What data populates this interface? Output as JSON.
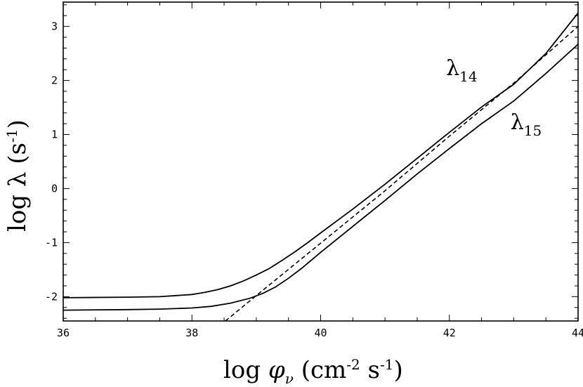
{
  "chart_data": {
    "type": "line",
    "xlabel": {
      "prefix": "log ",
      "symbol": "φ",
      "symbol_sub": "ν",
      "unit_open": " (cm",
      "exp1": "-2",
      "unit_mid": " s",
      "exp2": "-1",
      "unit_close": ")"
    },
    "ylabel": {
      "prefix": "log λ (s",
      "exp": "-1",
      "suffix": ")"
    },
    "xlim": [
      36,
      44
    ],
    "ylim": [
      -2.45,
      3.45
    ],
    "x_ticks": [
      36,
      38,
      40,
      42,
      44
    ],
    "y_ticks": [
      -2,
      -1,
      0,
      1,
      2,
      3
    ],
    "x_tick_labels": [
      "36",
      "38",
      "40",
      "42",
      "44"
    ],
    "y_tick_labels": [
      "-2",
      "-1",
      "0",
      "1",
      "2",
      "3"
    ],
    "x_minor_step": 0.5,
    "y_minor_step": 0.2,
    "grid": false,
    "series": [
      {
        "name": "λ14",
        "label_main": "λ",
        "label_sub": "14",
        "style": "solid",
        "label_at": [
          41.95,
          2.1
        ],
        "x": [
          36,
          37,
          37.5,
          38,
          38.2,
          38.4,
          38.6,
          38.8,
          39,
          39.2,
          39.4,
          39.6,
          39.8,
          40,
          40.5,
          41,
          41.5,
          42,
          42.5,
          43,
          43.5,
          44
        ],
        "y": [
          -2.02,
          -2.01,
          -2.0,
          -1.96,
          -1.92,
          -1.87,
          -1.8,
          -1.71,
          -1.6,
          -1.48,
          -1.33,
          -1.17,
          -1.0,
          -0.82,
          -0.38,
          0.08,
          0.56,
          1.04,
          1.51,
          1.93,
          2.5,
          3.25
        ]
      },
      {
        "name": "λ15",
        "label_main": "λ",
        "label_sub": "15",
        "style": "solid",
        "label_at": [
          42.95,
          1.1
        ],
        "x": [
          36,
          37,
          37.5,
          38,
          38.3,
          38.6,
          38.9,
          39.1,
          39.3,
          39.5,
          39.7,
          40,
          40.5,
          41,
          41.5,
          42,
          42.5,
          43,
          43.5,
          44
        ],
        "y": [
          -2.25,
          -2.24,
          -2.23,
          -2.21,
          -2.18,
          -2.12,
          -2.03,
          -1.94,
          -1.82,
          -1.66,
          -1.48,
          -1.18,
          -0.7,
          -0.22,
          0.27,
          0.74,
          1.2,
          1.62,
          2.13,
          2.67
        ]
      },
      {
        "name": "",
        "style": "dashed",
        "x": [
          38.52,
          39,
          40,
          41,
          42,
          43,
          44
        ],
        "y": [
          -2.45,
          -1.98,
          -1.01,
          -0.04,
          0.97,
          1.95,
          3.0
        ]
      }
    ]
  }
}
